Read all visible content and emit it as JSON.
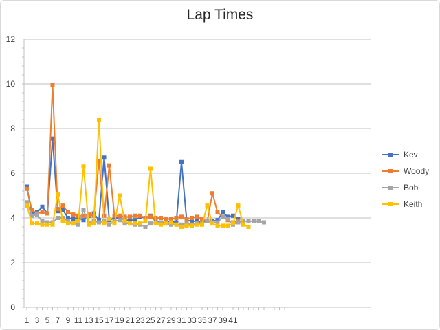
{
  "chart_data": {
    "type": "line",
    "title": "Lap Times",
    "xlabel": "",
    "ylabel": "",
    "ylim": [
      0,
      12
    ],
    "yticks": [
      0,
      2,
      4,
      6,
      8,
      10,
      12
    ],
    "xlim": [
      1,
      51
    ],
    "xticks": [
      1,
      3,
      5,
      7,
      9,
      11,
      13,
      15,
      17,
      19,
      21,
      23,
      25,
      27,
      29,
      31,
      33,
      35,
      37,
      39,
      41
    ],
    "grid": "horizontal",
    "legend_position": "right",
    "series": [
      {
        "name": "Kev",
        "color": "#4472c4",
        "values": [
          5.4,
          4.2,
          4.25,
          4.5,
          4.2,
          7.55,
          4.3,
          4.35,
          4.0,
          3.95,
          4.0,
          3.9,
          4.1,
          4.2,
          3.9,
          6.7,
          3.9,
          4.0,
          4.0,
          3.9,
          3.9,
          3.9,
          4.05,
          4.0,
          4.1,
          3.85,
          3.8,
          3.8,
          3.85,
          3.8,
          6.5,
          3.9,
          3.85,
          3.85,
          3.8,
          3.85,
          3.85,
          3.9,
          4.25,
          4.05,
          4.1,
          3.95
        ]
      },
      {
        "name": "Woody",
        "color": "#ed7d31",
        "values": [
          5.3,
          4.35,
          4.2,
          4.25,
          4.2,
          9.95,
          4.4,
          4.55,
          4.25,
          4.15,
          4.1,
          4.1,
          4.15,
          4.1,
          6.55,
          4.1,
          6.35,
          4.1,
          4.1,
          4.05,
          4.05,
          4.1,
          4.1,
          4.0,
          4.05,
          4.0,
          4.0,
          3.95,
          3.95,
          4.0,
          4.05,
          3.95,
          4.0,
          4.05,
          3.95,
          3.85,
          5.1,
          4.25,
          4.05,
          3.9,
          3.8,
          3.85,
          3.8
        ]
      },
      {
        "name": "Bob",
        "color": "#a5a5a5",
        "values": [
          4.7,
          4.1,
          4.15,
          3.85,
          3.8,
          3.8,
          4.0,
          4.0,
          3.85,
          3.75,
          3.7,
          4.35,
          3.75,
          3.85,
          3.8,
          3.85,
          3.7,
          3.85,
          3.9,
          3.75,
          3.75,
          3.7,
          3.7,
          3.6,
          3.75,
          3.8,
          3.8,
          3.75,
          3.7,
          3.7,
          3.7,
          3.75,
          3.7,
          3.75,
          3.75,
          3.85,
          3.8,
          3.8,
          4.05,
          3.95,
          3.7,
          3.8,
          3.85,
          3.85,
          3.85,
          3.85,
          3.8
        ]
      },
      {
        "name": "Keith",
        "color": "#ffc000",
        "values": [
          4.55,
          3.75,
          3.75,
          3.7,
          3.7,
          3.7,
          5.05,
          3.85,
          3.75,
          3.75,
          3.85,
          6.3,
          3.7,
          3.75,
          8.4,
          3.75,
          3.95,
          3.75,
          5.0,
          3.85,
          3.75,
          3.75,
          3.75,
          3.85,
          6.2,
          3.75,
          3.7,
          3.75,
          3.8,
          3.7,
          3.6,
          3.65,
          3.65,
          3.7,
          3.7,
          4.55,
          3.75,
          3.65,
          3.65,
          3.65,
          3.75,
          4.55,
          3.7,
          3.6
        ]
      }
    ]
  }
}
